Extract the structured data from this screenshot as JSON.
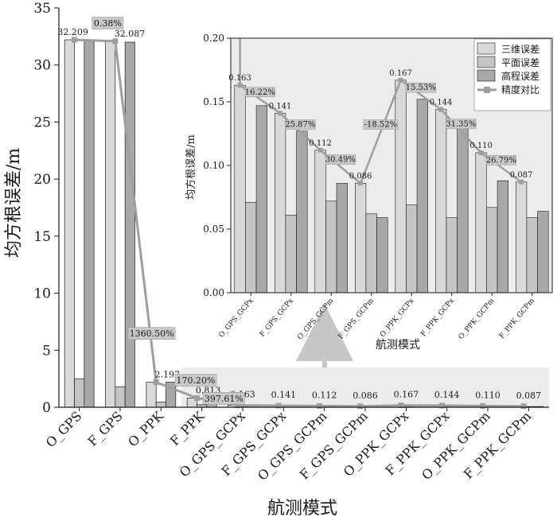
{
  "chart_data": [
    {
      "type": "bar",
      "title": "",
      "xlabel": "航测模式",
      "ylabel": "均方根误差/m",
      "ylim": [
        0,
        35
      ],
      "yticks": [
        "0",
        "5",
        "10",
        "15",
        "20",
        "25",
        "30",
        "35"
      ],
      "categories": [
        "O_GPS",
        "F_GPS",
        "O_PPK",
        "F_PPK",
        "O_GPS_GCPx",
        "F_GPS_GCPx",
        "O_GPS_GCPm",
        "F_GPS_GCPm",
        "O_PPK_GCPx",
        "F_PPK_GCPx",
        "O_PPK_GCPm",
        "F_PPK_GCPm"
      ],
      "series": [
        {
          "name": "三维误差",
          "values": [
            32.209,
            32.087,
            2.197,
            0.813,
            0.163,
            0.141,
            0.112,
            0.086,
            0.167,
            0.144,
            0.11,
            0.087
          ]
        },
        {
          "name": "平面误差",
          "values": [
            2.5,
            1.8,
            0.45,
            0.22,
            0.071,
            0.061,
            0.072,
            0.062,
            0.069,
            0.059,
            0.067,
            0.059
          ]
        },
        {
          "name": "高程误差",
          "values": [
            32.1,
            32.0,
            2.2,
            0.78,
            0.147,
            0.127,
            0.086,
            0.059,
            0.152,
            0.132,
            0.088,
            0.064
          ]
        },
        {
          "name": "精度对比",
          "values": [
            32.209,
            32.087,
            2.197,
            0.813,
            0.163,
            0.141,
            0.112,
            0.086,
            0.167,
            0.144,
            0.11,
            0.087
          ]
        }
      ],
      "value_labels": [
        "32.209",
        "32.087",
        "2.197",
        "0.813",
        "0.163",
        "0.141",
        "0.112",
        "0.086",
        "0.167",
        "0.144",
        "0.110",
        "0.087"
      ],
      "comparison_labels": [
        "0.38%",
        "1360.50%",
        "170.20%",
        "397.61%"
      ],
      "legend": "none",
      "grid": false,
      "zoom_region": {
        "ylim": [
          0,
          3.5
        ]
      }
    },
    {
      "type": "bar",
      "title": "",
      "xlabel": "航测模式",
      "ylabel": "均方根误差/m",
      "ylim": [
        0,
        0.2
      ],
      "yticks": [
        "0.00",
        "0.05",
        "0.10",
        "0.15",
        "0.20"
      ],
      "categories": [
        "O_GPS_GCPx",
        "F_GPS_GCPx",
        "O_GPS_GCPm",
        "F_GPS_GCPm",
        "O_PPK_GCPx",
        "F_PPK_GCPx",
        "O_PPK_GCPm",
        "F_PPK_GCPm"
      ],
      "series": [
        {
          "name": "三维误差",
          "values": [
            0.163,
            0.141,
            0.112,
            0.086,
            0.167,
            0.144,
            0.11,
            0.087
          ]
        },
        {
          "name": "平面误差",
          "values": [
            0.071,
            0.061,
            0.072,
            0.062,
            0.069,
            0.059,
            0.067,
            0.059
          ]
        },
        {
          "name": "高程误差",
          "values": [
            0.147,
            0.127,
            0.086,
            0.059,
            0.152,
            0.132,
            0.088,
            0.064
          ]
        },
        {
          "name": "精度对比",
          "values": [
            0.163,
            0.141,
            0.112,
            0.086,
            0.167,
            0.144,
            0.11,
            0.087
          ]
        }
      ],
      "value_labels": [
        "0.163",
        "0.141",
        "0.112",
        "0.086",
        "0.167",
        "0.144",
        "0.110",
        "0.087"
      ],
      "comparison_labels": [
        "16.22%",
        "25.87%",
        "30.49%",
        "-18.52%",
        "15.53%",
        "31.35%",
        "26.79%"
      ],
      "legend": "top-right",
      "grid": false
    }
  ],
  "colors": {
    "three_d": "#d9d9d9",
    "plane": "#c4c4c4",
    "elevation": "#a8a8a8",
    "ratio_line": "#9e9e9e",
    "inset_background": "#ececec"
  }
}
